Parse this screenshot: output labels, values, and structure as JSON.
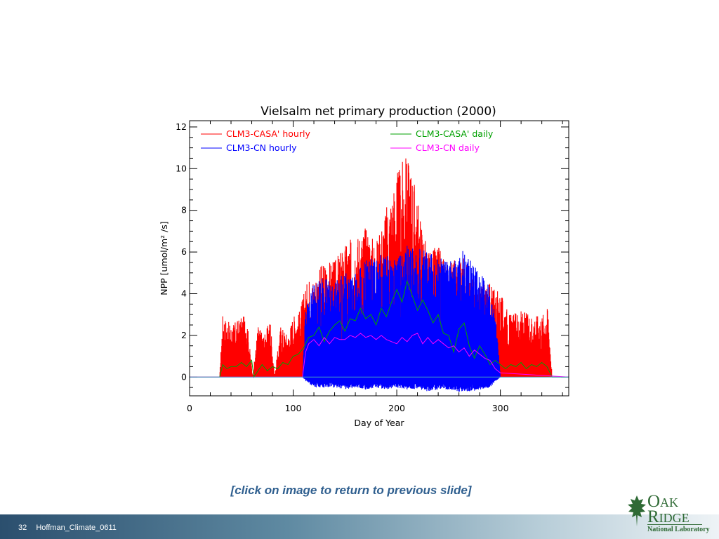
{
  "slide": {
    "caption": "[click on image to return to previous slide]",
    "page_number": "32",
    "footer_label": "Hoffman_Climate_0611",
    "logo": {
      "line1": "Oak",
      "line2": "Ridge",
      "line3": "National Laboratory",
      "icon": "oak-leaf-icon",
      "color": "#2f6a35"
    }
  },
  "chart_data": {
    "type": "line",
    "title": "Vielsalm net primary production (2000)",
    "xlabel": "Day of Year",
    "ylabel": "NPP [umol/m² /s]",
    "xlim": [
      0,
      366
    ],
    "ylim": [
      -0.9,
      12.3
    ],
    "x_ticks": [
      0,
      100,
      200,
      300
    ],
    "y_ticks": [
      0,
      2,
      4,
      6,
      8,
      10,
      12
    ],
    "grid": false,
    "legend_position": "top",
    "series": [
      {
        "name": "CLM3-CASA' hourly",
        "color": "#ff0000",
        "style": "hourly-envelope",
        "x": [
          0,
          29,
          32,
          40,
          48,
          55,
          61,
          66,
          72,
          78,
          82,
          88,
          95,
          100,
          105,
          110,
          115,
          120,
          130,
          140,
          150,
          160,
          170,
          180,
          190,
          200,
          205,
          210,
          215,
          220,
          230,
          240,
          250,
          260,
          265,
          270,
          280,
          290,
          295,
          300,
          305,
          310,
          320,
          330,
          340,
          346,
          350,
          366
        ],
        "max": [
          0,
          0,
          3.0,
          2.5,
          2.8,
          3.0,
          0,
          2.5,
          2.0,
          2.8,
          0,
          2.5,
          2.0,
          3.0,
          3.0,
          4.0,
          4.8,
          4.8,
          5.6,
          5.6,
          6.4,
          6.8,
          7.3,
          6.5,
          8.2,
          9.8,
          10.3,
          10.7,
          10.0,
          8.5,
          6.0,
          6.3,
          5.5,
          5.8,
          5.8,
          5.0,
          4.5,
          4.5,
          4.3,
          4.0,
          3.5,
          3.0,
          3.2,
          3.0,
          3.0,
          3.4,
          0,
          0
        ],
        "min": [
          0,
          0,
          0,
          0,
          0,
          0,
          0,
          0,
          0,
          0,
          0,
          0,
          0,
          0,
          0,
          0,
          0,
          0,
          0,
          0,
          0,
          0,
          0,
          0,
          0,
          0,
          0,
          0,
          0,
          0,
          0,
          0,
          0,
          0,
          0,
          0,
          0,
          0,
          0,
          0,
          0,
          0,
          0,
          0,
          0,
          0,
          0,
          0
        ]
      },
      {
        "name": "CLM3-CN hourly",
        "color": "#0000ff",
        "style": "hourly-envelope",
        "x": [
          0,
          109,
          112,
          120,
          130,
          140,
          150,
          160,
          170,
          180,
          190,
          200,
          210,
          220,
          230,
          240,
          250,
          260,
          265,
          270,
          280,
          290,
          295,
          298,
          300,
          366
        ],
        "max": [
          0,
          0,
          3.5,
          4.5,
          4.8,
          4.6,
          5.0,
          5.0,
          5.6,
          5.8,
          6.0,
          5.8,
          6.4,
          6.2,
          6.0,
          5.8,
          5.6,
          6.0,
          6.5,
          5.8,
          5.0,
          4.5,
          3.0,
          1.5,
          0,
          0
        ],
        "min": [
          0,
          0,
          -0.2,
          -0.5,
          -0.5,
          -0.5,
          -0.6,
          -0.5,
          -0.6,
          -0.5,
          -0.6,
          -0.5,
          -0.6,
          -0.6,
          -0.7,
          -0.6,
          -0.6,
          -0.7,
          -0.7,
          -0.7,
          -0.6,
          -0.5,
          -0.2,
          -0.1,
          0,
          0
        ]
      },
      {
        "name": "CLM3-CASA' daily",
        "color": "#00a000",
        "style": "line",
        "x": [
          0,
          29,
          32,
          36,
          40,
          45,
          50,
          55,
          60,
          62,
          66,
          70,
          75,
          80,
          85,
          90,
          95,
          100,
          105,
          110,
          115,
          120,
          125,
          130,
          135,
          140,
          145,
          150,
          155,
          160,
          165,
          170,
          175,
          180,
          185,
          190,
          195,
          200,
          205,
          210,
          215,
          220,
          225,
          230,
          235,
          240,
          245,
          250,
          255,
          260,
          265,
          270,
          275,
          280,
          285,
          290,
          295,
          300,
          305,
          310,
          315,
          320,
          325,
          330,
          335,
          340,
          345,
          350,
          366
        ],
        "values": [
          0,
          0,
          0.6,
          0.4,
          0.5,
          0.5,
          0.7,
          0.5,
          0.8,
          0.0,
          0.3,
          0.6,
          0.3,
          0.5,
          0.4,
          0.7,
          0.6,
          1.0,
          1.1,
          1.4,
          1.9,
          2.0,
          2.4,
          1.7,
          2.2,
          2.5,
          2.7,
          2.2,
          2.8,
          2.7,
          3.3,
          2.8,
          3.0,
          2.5,
          3.3,
          2.9,
          3.6,
          4.2,
          3.6,
          4.6,
          3.9,
          3.2,
          3.7,
          3.2,
          2.6,
          3.0,
          2.1,
          2.0,
          1.2,
          2.3,
          2.6,
          1.5,
          0.9,
          1.5,
          1.1,
          0.6,
          0.8,
          0.6,
          0.4,
          0.6,
          0.5,
          0.7,
          0.4,
          0.6,
          0.5,
          0.7,
          0.5,
          0,
          0
        ]
      },
      {
        "name": "CLM3-CN daily",
        "color": "#ff00ff",
        "style": "line",
        "x": [
          0,
          109,
          112,
          115,
          120,
          125,
          130,
          135,
          140,
          145,
          150,
          155,
          160,
          165,
          170,
          175,
          180,
          185,
          190,
          195,
          200,
          205,
          210,
          215,
          220,
          225,
          230,
          235,
          240,
          245,
          250,
          255,
          260,
          265,
          270,
          275,
          280,
          285,
          290,
          295,
          300,
          366
        ],
        "values": [
          0,
          0,
          1.2,
          1.6,
          1.8,
          1.5,
          1.9,
          1.6,
          1.9,
          1.8,
          1.8,
          2.0,
          1.9,
          2.1,
          1.9,
          2.0,
          1.8,
          2.0,
          1.8,
          1.7,
          1.6,
          1.9,
          1.7,
          2.0,
          2.1,
          1.6,
          1.9,
          1.6,
          1.8,
          1.6,
          1.4,
          1.5,
          1.2,
          1.4,
          1.0,
          1.3,
          1.1,
          0.9,
          0.8,
          0.4,
          0.2,
          0
        ]
      }
    ]
  }
}
